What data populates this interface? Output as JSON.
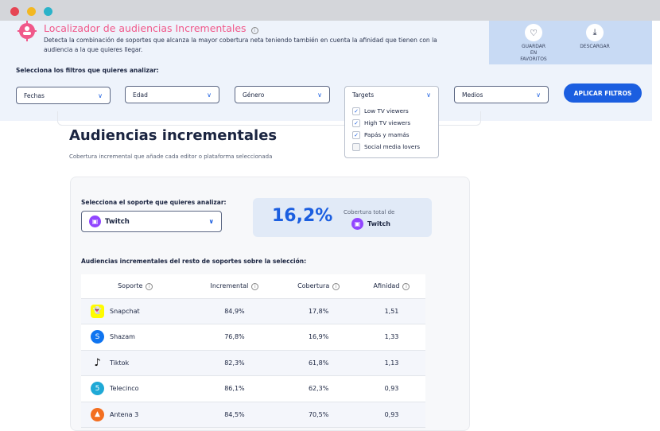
{
  "header": {
    "title": "Localizador de audiencias Incrementales",
    "description": "Detecta la combinación de soportes que alcanza la mayor cobertura neta teniendo también en cuenta la afinidad que tienen con la audiencia a la que quieres llegar.",
    "save_label": "GUARDAR EN FAVORITOS",
    "download_label": "DESCARGAR"
  },
  "filters": {
    "label": "Selecciona los filtros que quieres analizar:",
    "items": [
      "Fechas",
      "Edad",
      "Género",
      "Targets",
      "Medios"
    ],
    "apply": "APLICAR FILTROS",
    "targets_options": [
      {
        "label": "Low TV viewers",
        "checked": true
      },
      {
        "label": "High TV viewers",
        "checked": true
      },
      {
        "label": "Papás y mamás",
        "checked": true
      },
      {
        "label": "Social media lovers",
        "checked": false
      }
    ]
  },
  "main": {
    "title": "Audiencias incrementales",
    "subtitle": "Cobertura incremental que añade cada editor o plataforma seleccionada",
    "select_label": "Selecciona el soporte que quieres analizar:",
    "selected": "Twitch",
    "kpi_value": "16,2%",
    "kpi_label": "Cobertura total de",
    "kpi_name": "Twitch",
    "table_title": "Audiencias incrementales del resto de soportes sobre la selección:"
  },
  "table": {
    "headers": [
      "Soporte",
      "Incremental",
      "Cobertura",
      "Afinidad"
    ],
    "rows": [
      [
        "Snapchat",
        "84,9%",
        "17,8%",
        "1,51"
      ],
      [
        "Shazam",
        "76,8%",
        "16,9%",
        "1,33"
      ],
      [
        "Tiktok",
        "82,3%",
        "61,8%",
        "1,13"
      ],
      [
        "Telecinco",
        "86,1%",
        "62,3%",
        "0,93"
      ],
      [
        "Antena 3",
        "84,5%",
        "70,5%",
        "0,93"
      ]
    ]
  },
  "colors": {
    "accent": "#1b5ee0",
    "title_pink": "#f0588a",
    "twitch": "#9146ff"
  }
}
